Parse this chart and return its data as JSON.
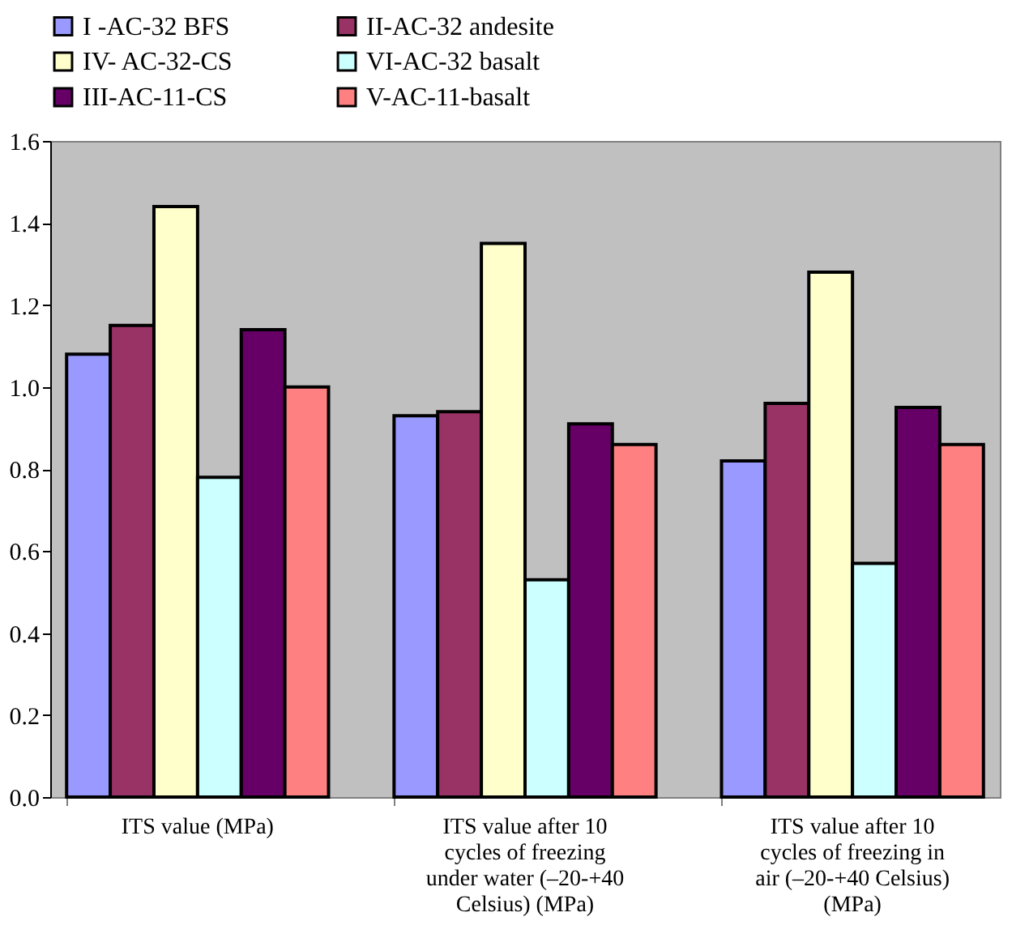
{
  "chart_data": {
    "type": "bar",
    "categories": [
      "ITS value (MPa)",
      "ITS value after 10 cycles of freezing under water (–20-+40 Celsius) (MPa)",
      "ITS value after 10 cycles of freezing in air (–20-+40 Celsius) (MPa)"
    ],
    "series": [
      {
        "name": "I -AC-32 BFS",
        "color": "#9999ff",
        "values": [
          1.08,
          0.93,
          0.82
        ]
      },
      {
        "name": "II-AC-32 andesite",
        "color": "#993366",
        "values": [
          1.15,
          0.94,
          0.96
        ]
      },
      {
        "name": "IV- AC-32-CS",
        "color": "#ffffcc",
        "values": [
          1.44,
          1.35,
          1.28
        ]
      },
      {
        "name": "VI-AC-32 basalt",
        "color": "#ccffff",
        "values": [
          0.78,
          0.53,
          0.57
        ]
      },
      {
        "name": "III-AC-11-CS",
        "color": "#660066",
        "values": [
          1.14,
          0.91,
          0.95
        ]
      },
      {
        "name": "V-AC-11-basalt",
        "color": "#ff8080",
        "values": [
          1.0,
          0.86,
          0.86
        ]
      }
    ],
    "ylim": [
      0,
      1.6
    ],
    "yticks": [
      {
        "value": 0,
        "label": "0.0"
      },
      0.2,
      0.4,
      0.6,
      0.8,
      {
        "value": 1,
        "label": "1.0"
      },
      1.2,
      1.4,
      1.6
    ],
    "grid": false,
    "legend": "top"
  }
}
